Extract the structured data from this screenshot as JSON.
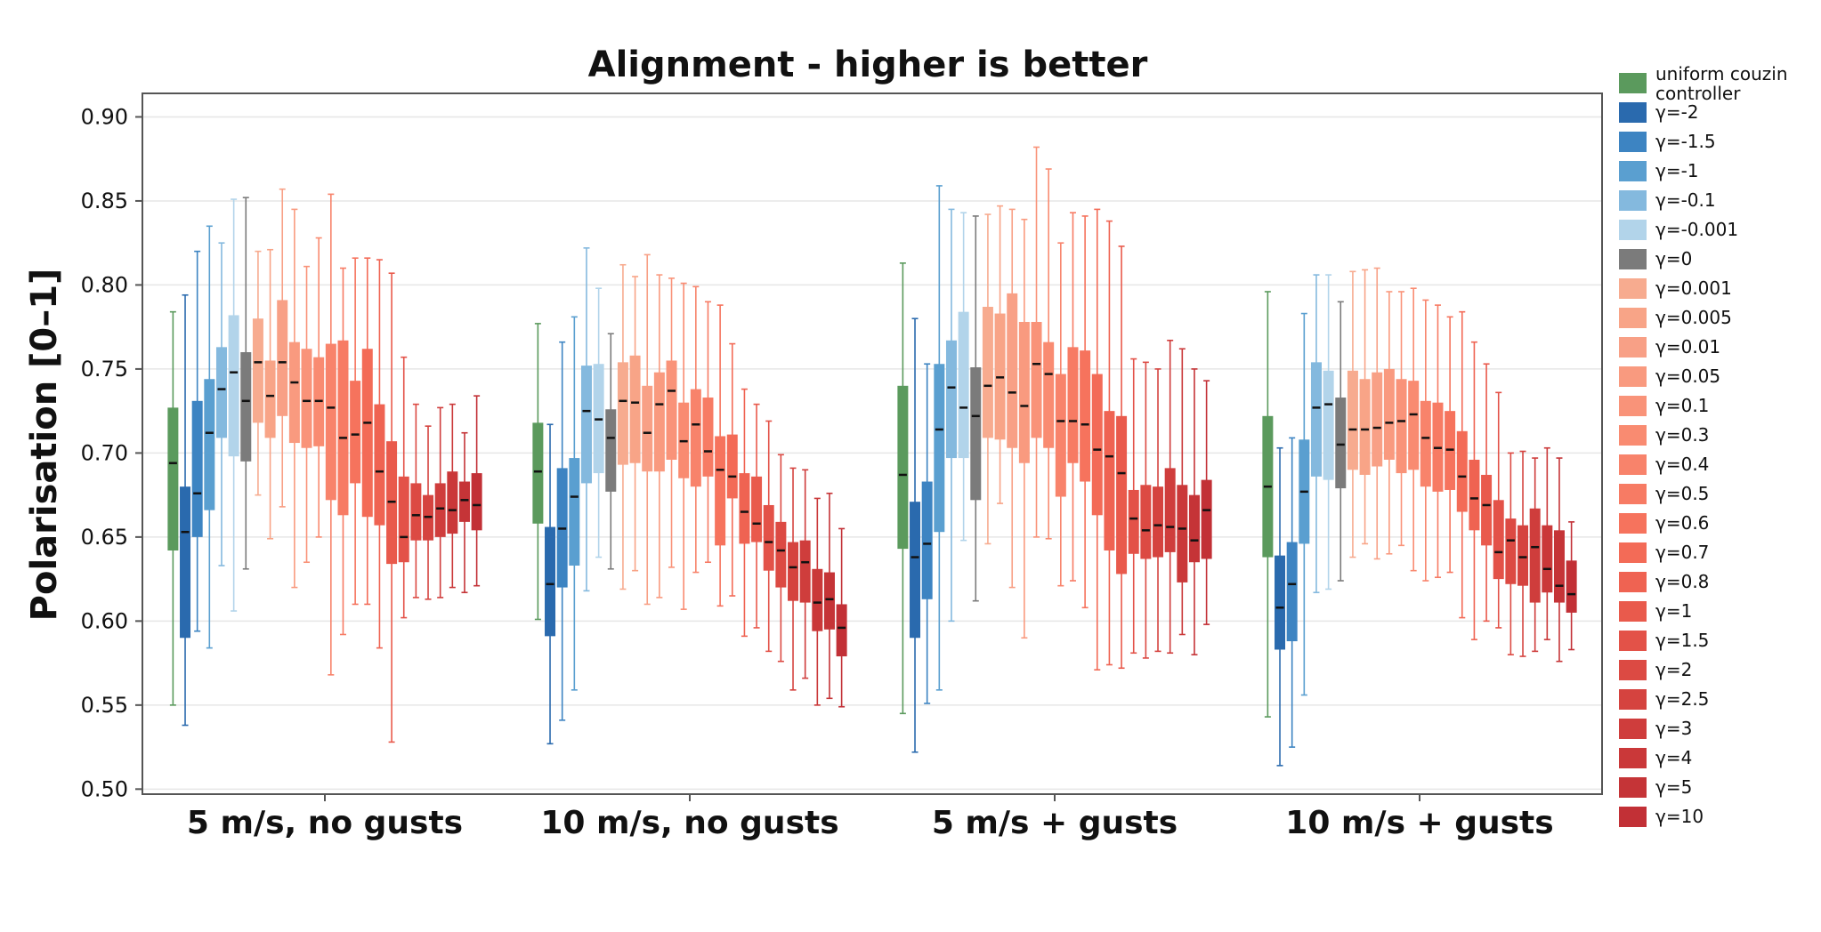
{
  "chart_data": {
    "type": "box",
    "title": "Alignment - higher is better",
    "ylabel": "Polarisation [0–1]",
    "xlabel": "",
    "ylim": [
      0.497,
      0.914
    ],
    "yticks": [
      "0.50",
      "0.55",
      "0.60",
      "0.65",
      "0.70",
      "0.75",
      "0.80",
      "0.85",
      "0.90"
    ],
    "grid": true,
    "legend_position": "right-outside",
    "categories": [
      "5 m/s, no gusts",
      "10 m/s, no gusts",
      "5 m/s + gusts",
      "10 m/s + gusts"
    ],
    "series": [
      {
        "name": "uniform couzin controller",
        "color": "#5b9a5d",
        "boxes": [
          [
            0.55,
            0.642,
            0.694,
            0.727,
            0.784
          ],
          [
            0.601,
            0.658,
            0.689,
            0.718,
            0.777
          ],
          [
            0.545,
            0.643,
            0.687,
            0.74,
            0.813
          ],
          [
            0.543,
            0.638,
            0.68,
            0.722,
            0.796
          ]
        ]
      },
      {
        "name": "γ=-2",
        "color": "#2a6aae",
        "boxes": [
          [
            0.538,
            0.59,
            0.653,
            0.68,
            0.794
          ],
          [
            0.527,
            0.591,
            0.622,
            0.656,
            0.717
          ],
          [
            0.522,
            0.59,
            0.638,
            0.671,
            0.78
          ],
          [
            0.514,
            0.583,
            0.608,
            0.639,
            0.703
          ]
        ]
      },
      {
        "name": "γ=-1.5",
        "color": "#3d84c2",
        "boxes": [
          [
            0.594,
            0.65,
            0.676,
            0.731,
            0.82
          ],
          [
            0.541,
            0.62,
            0.655,
            0.691,
            0.766
          ],
          [
            0.551,
            0.613,
            0.646,
            0.683,
            0.753
          ],
          [
            0.525,
            0.588,
            0.622,
            0.647,
            0.709
          ]
        ]
      },
      {
        "name": "γ=-1",
        "color": "#5a9fd0",
        "boxes": [
          [
            0.584,
            0.666,
            0.712,
            0.744,
            0.835
          ],
          [
            0.559,
            0.633,
            0.674,
            0.697,
            0.781
          ],
          [
            0.559,
            0.653,
            0.714,
            0.753,
            0.859
          ],
          [
            0.556,
            0.646,
            0.677,
            0.708,
            0.783
          ]
        ]
      },
      {
        "name": "γ=-0.1",
        "color": "#84b9de",
        "boxes": [
          [
            0.633,
            0.709,
            0.738,
            0.763,
            0.825
          ],
          [
            0.618,
            0.682,
            0.725,
            0.752,
            0.822
          ],
          [
            0.6,
            0.697,
            0.739,
            0.767,
            0.845
          ],
          [
            0.617,
            0.686,
            0.727,
            0.754,
            0.806
          ]
        ]
      },
      {
        "name": "γ=-0.001",
        "color": "#b2d4ea",
        "boxes": [
          [
            0.606,
            0.698,
            0.748,
            0.782,
            0.851
          ],
          [
            0.638,
            0.688,
            0.72,
            0.753,
            0.798
          ],
          [
            0.648,
            0.697,
            0.727,
            0.784,
            0.843
          ],
          [
            0.619,
            0.684,
            0.729,
            0.749,
            0.806
          ]
        ]
      },
      {
        "name": "γ=0",
        "color": "#7b7b7b",
        "boxes": [
          [
            0.631,
            0.695,
            0.731,
            0.76,
            0.852
          ],
          [
            0.631,
            0.677,
            0.709,
            0.726,
            0.771
          ],
          [
            0.612,
            0.672,
            0.722,
            0.751,
            0.841
          ],
          [
            0.624,
            0.679,
            0.705,
            0.733,
            0.79
          ]
        ]
      },
      {
        "name": "γ=0.001",
        "color": "#f7ab8f",
        "boxes": [
          [
            0.675,
            0.718,
            0.754,
            0.78,
            0.82
          ],
          [
            0.619,
            0.693,
            0.731,
            0.754,
            0.812
          ],
          [
            0.646,
            0.709,
            0.74,
            0.787,
            0.842
          ],
          [
            0.638,
            0.69,
            0.714,
            0.749,
            0.808
          ]
        ]
      },
      {
        "name": "γ=0.005",
        "color": "#f8a487",
        "boxes": [
          [
            0.649,
            0.709,
            0.734,
            0.755,
            0.821
          ],
          [
            0.63,
            0.694,
            0.73,
            0.758,
            0.805
          ],
          [
            0.67,
            0.708,
            0.745,
            0.783,
            0.847
          ],
          [
            0.646,
            0.687,
            0.714,
            0.744,
            0.809
          ]
        ]
      },
      {
        "name": "γ=0.01",
        "color": "#f8a086",
        "boxes": [
          [
            0.668,
            0.722,
            0.754,
            0.791,
            0.857
          ],
          [
            0.61,
            0.689,
            0.712,
            0.74,
            0.818
          ],
          [
            0.62,
            0.703,
            0.736,
            0.795,
            0.845
          ],
          [
            0.637,
            0.692,
            0.715,
            0.748,
            0.81
          ]
        ]
      },
      {
        "name": "γ=0.05",
        "color": "#f99a7f",
        "boxes": [
          [
            0.62,
            0.706,
            0.742,
            0.766,
            0.845
          ],
          [
            0.614,
            0.689,
            0.729,
            0.748,
            0.806
          ],
          [
            0.59,
            0.694,
            0.728,
            0.778,
            0.839
          ],
          [
            0.64,
            0.696,
            0.718,
            0.75,
            0.796
          ]
        ]
      },
      {
        "name": "γ=0.1",
        "color": "#f99379",
        "boxes": [
          [
            0.635,
            0.703,
            0.731,
            0.762,
            0.811
          ],
          [
            0.632,
            0.696,
            0.737,
            0.755,
            0.804
          ],
          [
            0.65,
            0.709,
            0.753,
            0.778,
            0.882
          ],
          [
            0.645,
            0.688,
            0.719,
            0.744,
            0.796
          ]
        ]
      },
      {
        "name": "γ=0.3",
        "color": "#f98b71",
        "boxes": [
          [
            0.65,
            0.704,
            0.731,
            0.757,
            0.828
          ],
          [
            0.607,
            0.685,
            0.707,
            0.73,
            0.801
          ],
          [
            0.649,
            0.703,
            0.747,
            0.766,
            0.869
          ],
          [
            0.63,
            0.69,
            0.723,
            0.743,
            0.798
          ]
        ]
      },
      {
        "name": "γ=0.4",
        "color": "#f8836b",
        "boxes": [
          [
            0.568,
            0.672,
            0.727,
            0.765,
            0.854
          ],
          [
            0.629,
            0.68,
            0.717,
            0.738,
            0.799
          ],
          [
            0.621,
            0.674,
            0.719,
            0.747,
            0.825
          ],
          [
            0.624,
            0.68,
            0.709,
            0.731,
            0.791
          ]
        ]
      },
      {
        "name": "γ=0.5",
        "color": "#f77b64",
        "boxes": [
          [
            0.592,
            0.663,
            0.709,
            0.767,
            0.81
          ],
          [
            0.635,
            0.686,
            0.701,
            0.733,
            0.79
          ],
          [
            0.624,
            0.694,
            0.719,
            0.763,
            0.843
          ],
          [
            0.626,
            0.677,
            0.703,
            0.73,
            0.788
          ]
        ]
      },
      {
        "name": "γ=0.6",
        "color": "#f6735d",
        "boxes": [
          [
            0.61,
            0.682,
            0.711,
            0.743,
            0.816
          ],
          [
            0.609,
            0.645,
            0.69,
            0.71,
            0.788
          ],
          [
            0.608,
            0.683,
            0.717,
            0.761,
            0.841
          ],
          [
            0.629,
            0.678,
            0.702,
            0.725,
            0.781
          ]
        ]
      },
      {
        "name": "γ=0.7",
        "color": "#f36b57",
        "boxes": [
          [
            0.61,
            0.662,
            0.718,
            0.762,
            0.816
          ],
          [
            0.615,
            0.673,
            0.686,
            0.711,
            0.765
          ],
          [
            0.571,
            0.663,
            0.702,
            0.747,
            0.845
          ],
          [
            0.602,
            0.665,
            0.686,
            0.713,
            0.784
          ]
        ]
      },
      {
        "name": "γ=0.8",
        "color": "#ef6352",
        "boxes": [
          [
            0.584,
            0.657,
            0.689,
            0.729,
            0.815
          ],
          [
            0.591,
            0.646,
            0.665,
            0.688,
            0.738
          ],
          [
            0.574,
            0.642,
            0.698,
            0.725,
            0.838
          ],
          [
            0.589,
            0.654,
            0.673,
            0.696,
            0.766
          ]
        ]
      },
      {
        "name": "γ=1",
        "color": "#e95a4c",
        "boxes": [
          [
            0.528,
            0.634,
            0.671,
            0.707,
            0.807
          ],
          [
            0.596,
            0.647,
            0.658,
            0.686,
            0.729
          ],
          [
            0.572,
            0.628,
            0.688,
            0.722,
            0.823
          ],
          [
            0.6,
            0.645,
            0.669,
            0.687,
            0.753
          ]
        ]
      },
      {
        "name": "γ=1.5",
        "color": "#e35248",
        "boxes": [
          [
            0.602,
            0.635,
            0.65,
            0.686,
            0.757
          ],
          [
            0.582,
            0.63,
            0.647,
            0.669,
            0.719
          ],
          [
            0.581,
            0.64,
            0.661,
            0.678,
            0.756
          ],
          [
            0.596,
            0.625,
            0.641,
            0.672,
            0.736
          ]
        ]
      },
      {
        "name": "γ=2",
        "color": "#dc4a43",
        "boxes": [
          [
            0.614,
            0.648,
            0.663,
            0.682,
            0.729
          ],
          [
            0.576,
            0.62,
            0.642,
            0.659,
            0.699
          ],
          [
            0.578,
            0.637,
            0.654,
            0.681,
            0.754
          ],
          [
            0.58,
            0.622,
            0.648,
            0.661,
            0.7
          ]
        ]
      },
      {
        "name": "γ=2.5",
        "color": "#d5433f",
        "boxes": [
          [
            0.613,
            0.648,
            0.662,
            0.675,
            0.716
          ],
          [
            0.559,
            0.612,
            0.632,
            0.647,
            0.691
          ],
          [
            0.582,
            0.638,
            0.657,
            0.68,
            0.75
          ],
          [
            0.579,
            0.621,
            0.638,
            0.657,
            0.701
          ]
        ]
      },
      {
        "name": "γ=3",
        "color": "#cf3d3c",
        "boxes": [
          [
            0.614,
            0.65,
            0.667,
            0.682,
            0.727
          ],
          [
            0.566,
            0.611,
            0.635,
            0.648,
            0.69
          ],
          [
            0.581,
            0.641,
            0.656,
            0.691,
            0.767
          ],
          [
            0.582,
            0.611,
            0.644,
            0.667,
            0.697
          ]
        ]
      },
      {
        "name": "γ=4",
        "color": "#ca3839",
        "boxes": [
          [
            0.62,
            0.652,
            0.666,
            0.689,
            0.729
          ],
          [
            0.55,
            0.594,
            0.611,
            0.631,
            0.673
          ],
          [
            0.592,
            0.623,
            0.655,
            0.681,
            0.762
          ],
          [
            0.589,
            0.617,
            0.631,
            0.657,
            0.703
          ]
        ]
      },
      {
        "name": "γ=5",
        "color": "#c53437",
        "boxes": [
          [
            0.617,
            0.659,
            0.672,
            0.683,
            0.712
          ],
          [
            0.554,
            0.595,
            0.613,
            0.629,
            0.676
          ],
          [
            0.58,
            0.635,
            0.648,
            0.675,
            0.75
          ],
          [
            0.576,
            0.611,
            0.621,
            0.654,
            0.697
          ]
        ]
      },
      {
        "name": "γ=10",
        "color": "#c23036",
        "boxes": [
          [
            0.621,
            0.654,
            0.669,
            0.688,
            0.734
          ],
          [
            0.549,
            0.579,
            0.596,
            0.61,
            0.655
          ],
          [
            0.598,
            0.637,
            0.666,
            0.684,
            0.743
          ],
          [
            0.583,
            0.605,
            0.616,
            0.636,
            0.659
          ]
        ]
      }
    ]
  }
}
